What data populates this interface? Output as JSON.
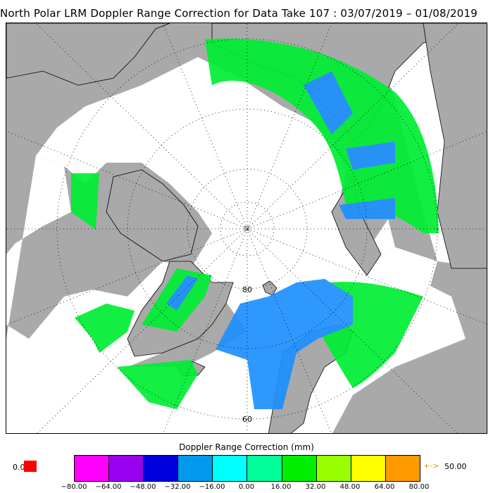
{
  "title": "North Polar LRM Doppler Range Correction for Data Take 107 : 03/07/2019 – 01/08/2019",
  "map": {
    "projection": "north polar stereographic",
    "latitude_labels": [
      "80",
      "60"
    ],
    "colors": {
      "land": "#a9a9a9",
      "ocean": "#ffffff",
      "grid": "#000000"
    }
  },
  "colorbar": {
    "title": "Doppler Range Correction (mm)",
    "ticks": [
      "−80.00",
      "−64.00",
      "−48.00",
      "−32.00",
      "−16.00",
      "0.00",
      "16.00",
      "32.00",
      "48.00",
      "64.00",
      "80.00"
    ],
    "colors": [
      "#ff00ff",
      "#9900ee",
      "#0000dd",
      "#0099ee",
      "#00ffff",
      "#00ff99",
      "#00ee00",
      "#99ff00",
      "#ffff00",
      "#ff9900"
    ],
    "under_value": "0.0",
    "under_color": "#ff0000",
    "over_arrow": "+->",
    "over_value": "50.00"
  }
}
